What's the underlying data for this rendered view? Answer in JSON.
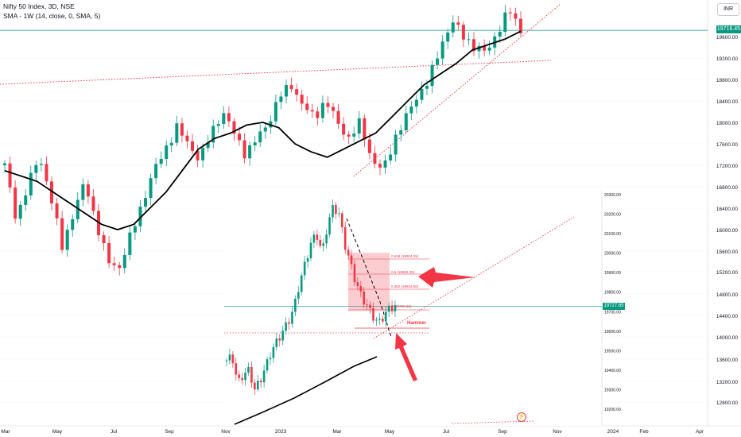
{
  "header": {
    "title": "Nifty 50 Index, 3D, NSE",
    "indicator": "SMA - 1W (14, close, 0, SMA, 5)",
    "currency": "INR"
  },
  "colors": {
    "up": "#089981",
    "down": "#f23645",
    "sma": "#000000",
    "trendline": "#f23645",
    "grid": "#f0f3fa",
    "price_line": "#089981"
  },
  "icons": {
    "alert": "alert-lightning-icon"
  },
  "chart_data": [
    {
      "type": "candlestick",
      "x_ticks": [
        "Mar",
        "May",
        "Jul",
        "Sep",
        "Nov",
        "2023",
        "Mar",
        "May",
        "Jul",
        "Sep",
        "Nov",
        "2024",
        "Feb",
        "Apr"
      ],
      "y_ticks": [
        12800,
        13200,
        13600,
        14000,
        14400,
        14800,
        15200,
        15600,
        16000,
        16400,
        16800,
        17200,
        17600,
        18000,
        18400,
        18800,
        19200,
        19600
      ],
      "current_price": "19716.45",
      "current_price_value": 19716.45,
      "sma_label": "SMA - 1W (14, close, 0, SMA, 5)",
      "price_path": [
        17200,
        16200,
        16800,
        17400,
        16600,
        15700,
        16300,
        16900,
        16100,
        15400,
        15300,
        15900,
        16500,
        17100,
        17500,
        17900,
        17600,
        17300,
        17800,
        18200,
        17800,
        17400,
        17700,
        18000,
        18500,
        18700,
        18300,
        18100,
        18400,
        18000,
        17700,
        18000,
        17300,
        17100,
        17700,
        18100,
        18500,
        18800,
        19400,
        19900,
        19600,
        19400,
        19300,
        19700,
        20100,
        19716
      ],
      "sma": [
        17100,
        17000,
        16900,
        16700,
        16500,
        16300,
        16100,
        16000,
        16100,
        16400,
        16700,
        17100,
        17500,
        17700,
        17800,
        17950,
        18000,
        17900,
        17600,
        17450,
        17350,
        17500,
        17650,
        17800,
        18100,
        18400,
        18700,
        18900,
        19100,
        19350,
        19450,
        19550,
        19700
      ]
    },
    {
      "type": "candlestick",
      "y_ticks": [
        19200,
        19300,
        19400,
        19500,
        19600,
        19700,
        19800,
        19900,
        20000,
        20100,
        20200,
        20300
      ],
      "current_price": "19727.65",
      "current_price_value": 19727.65,
      "fib_levels": [
        {
          "label": "0.618 (19904.25)",
          "value": 19904.25
        },
        {
          "label": "0.5 (19884.35)",
          "value": 19884.35
        },
        {
          "label": "0.382 (19824.50)",
          "value": 19824.5
        },
        {
          "label": "0 (19720.15)",
          "value": 19720.15
        }
      ],
      "annotations": [
        "Hammer"
      ],
      "price_path": [
        19450,
        19470,
        19330,
        19380,
        19400,
        19300,
        19350,
        19420,
        19500,
        19550,
        19600,
        19650,
        19720,
        19850,
        19950,
        20050,
        20100,
        20000,
        20150,
        20240,
        20200,
        20050,
        19950,
        19850,
        19780,
        19730,
        19680,
        19640,
        19680,
        19720,
        19727
      ]
    }
  ]
}
